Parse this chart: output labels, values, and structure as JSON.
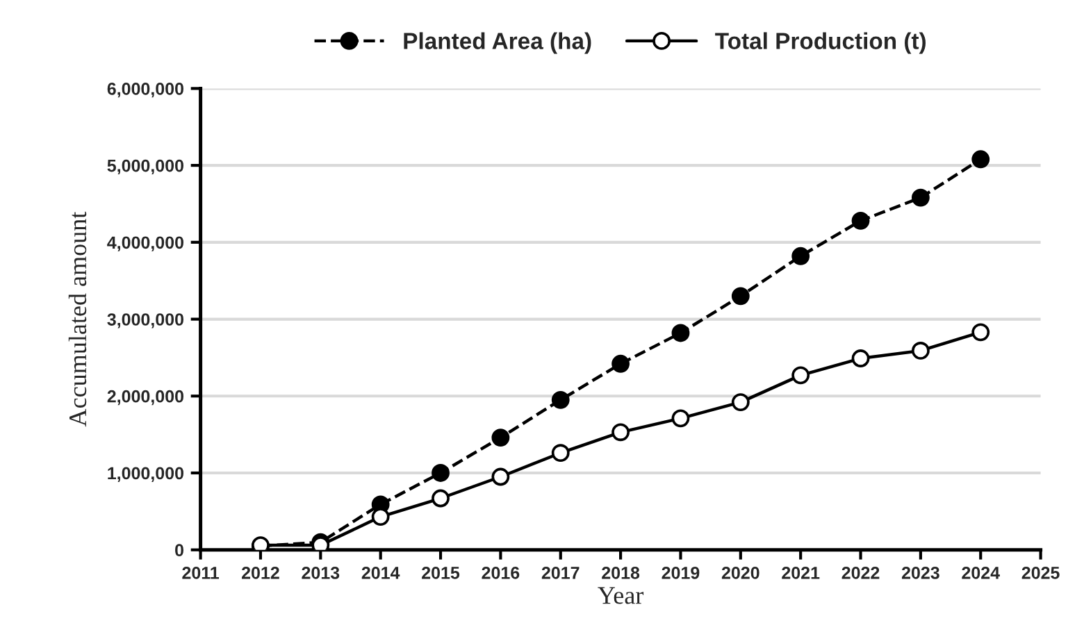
{
  "chart_data": {
    "type": "line",
    "xlabel": "Year",
    "ylabel": "Accumulated amount",
    "x": [
      2012,
      2013,
      2014,
      2015,
      2016,
      2017,
      2018,
      2019,
      2020,
      2021,
      2022,
      2023,
      2024
    ],
    "series": [
      {
        "name": "Planted Area (ha)",
        "color": "#000000",
        "marker": "circle",
        "line_style": "dashed",
        "values": [
          50000,
          100000,
          590000,
          1000000,
          1460000,
          1950000,
          2420000,
          2820000,
          3300000,
          3820000,
          4280000,
          4580000,
          5080000
        ]
      },
      {
        "name": "Total Production (t)",
        "color": "#000000",
        "marker": "circle",
        "line_style": "solid",
        "values": [
          60000,
          60000,
          430000,
          670000,
          950000,
          1260000,
          1530000,
          1710000,
          1920000,
          2270000,
          2490000,
          2590000,
          2830000
        ]
      }
    ],
    "xlim": [
      2011,
      2025
    ],
    "xticks": [
      2011,
      2012,
      2013,
      2014,
      2015,
      2016,
      2017,
      2018,
      2019,
      2020,
      2021,
      2022,
      2023,
      2024,
      2025
    ],
    "ylim": [
      0,
      6000000
    ],
    "yticks": [
      {
        "value": 0,
        "label": "0"
      },
      {
        "value": 1000000,
        "label": "1,000,000"
      },
      {
        "value": 2000000,
        "label": "2,000,000"
      },
      {
        "value": 3000000,
        "label": "3,000,000"
      },
      {
        "value": 4000000,
        "label": "4,000,000"
      },
      {
        "value": 5000000,
        "label": "5,000,000"
      },
      {
        "value": 6000000,
        "label": "6,000,000"
      }
    ],
    "grid": "y",
    "legend": "top"
  }
}
